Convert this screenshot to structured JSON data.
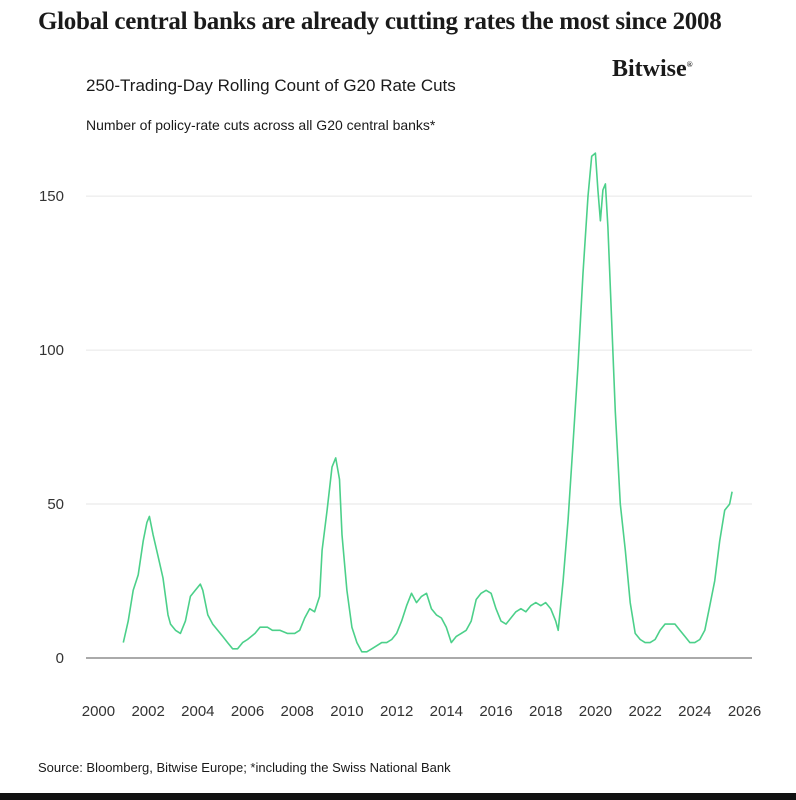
{
  "headline": "Global central banks are already cutting rates the most since 2008",
  "logo_text": "Bitwise",
  "logo_mark": "®",
  "source_note": "Source: Bloomberg, Bitwise Europe; *including the Swiss National Bank",
  "colors": {
    "line": "#4cd08a",
    "grid": "#e6e6e6",
    "axis": "#555555",
    "text": "#1a1a1a"
  },
  "chart_data": {
    "type": "line",
    "title": "250-Trading-Day Rolling Count of G20 Rate Cuts",
    "subtitle": "Number of policy-rate cuts across all G20 central banks*",
    "xlabel": "",
    "ylabel": "",
    "xlim": [
      1999.5,
      2026.3
    ],
    "ylim": [
      0,
      165
    ],
    "x_ticks": [
      "2000",
      "2002",
      "2004",
      "2006",
      "2008",
      "2010",
      "2012",
      "2014",
      "2016",
      "2018",
      "2020",
      "2022",
      "2024",
      "2026"
    ],
    "y_ticks": [
      "0",
      "50",
      "100",
      "150"
    ],
    "grid": "horizontal",
    "legend": "none",
    "series": [
      {
        "points": [
          [
            2001.0,
            5
          ],
          [
            2001.2,
            12
          ],
          [
            2001.4,
            22
          ],
          [
            2001.6,
            27
          ],
          [
            2001.8,
            38
          ],
          [
            2001.95,
            44
          ],
          [
            2002.05,
            46
          ],
          [
            2002.2,
            40
          ],
          [
            2002.4,
            33
          ],
          [
            2002.6,
            26
          ],
          [
            2002.8,
            14
          ],
          [
            2002.9,
            11
          ],
          [
            2003.1,
            9
          ],
          [
            2003.3,
            8
          ],
          [
            2003.5,
            12
          ],
          [
            2003.7,
            20
          ],
          [
            2003.9,
            22
          ],
          [
            2004.1,
            24
          ],
          [
            2004.2,
            22
          ],
          [
            2004.4,
            14
          ],
          [
            2004.6,
            11
          ],
          [
            2004.8,
            9
          ],
          [
            2005.0,
            7
          ],
          [
            2005.2,
            5
          ],
          [
            2005.4,
            3
          ],
          [
            2005.6,
            3
          ],
          [
            2005.8,
            5
          ],
          [
            2006.0,
            6
          ],
          [
            2006.3,
            8
          ],
          [
            2006.5,
            10
          ],
          [
            2006.8,
            10
          ],
          [
            2007.0,
            9
          ],
          [
            2007.3,
            9
          ],
          [
            2007.6,
            8
          ],
          [
            2007.9,
            8
          ],
          [
            2008.1,
            9
          ],
          [
            2008.3,
            13
          ],
          [
            2008.5,
            16
          ],
          [
            2008.7,
            15
          ],
          [
            2008.9,
            20
          ],
          [
            2009.0,
            35
          ],
          [
            2009.2,
            48
          ],
          [
            2009.4,
            62
          ],
          [
            2009.55,
            65
          ],
          [
            2009.7,
            58
          ],
          [
            2009.8,
            40
          ],
          [
            2010.0,
            22
          ],
          [
            2010.2,
            10
          ],
          [
            2010.4,
            5
          ],
          [
            2010.6,
            2
          ],
          [
            2010.8,
            2
          ],
          [
            2011.0,
            3
          ],
          [
            2011.2,
            4
          ],
          [
            2011.4,
            5
          ],
          [
            2011.6,
            5
          ],
          [
            2011.8,
            6
          ],
          [
            2012.0,
            8
          ],
          [
            2012.2,
            12
          ],
          [
            2012.4,
            17
          ],
          [
            2012.6,
            21
          ],
          [
            2012.8,
            18
          ],
          [
            2013.0,
            20
          ],
          [
            2013.2,
            21
          ],
          [
            2013.4,
            16
          ],
          [
            2013.6,
            14
          ],
          [
            2013.8,
            13
          ],
          [
            2014.0,
            10
          ],
          [
            2014.2,
            5
          ],
          [
            2014.4,
            7
          ],
          [
            2014.6,
            8
          ],
          [
            2014.8,
            9
          ],
          [
            2015.0,
            12
          ],
          [
            2015.2,
            19
          ],
          [
            2015.4,
            21
          ],
          [
            2015.6,
            22
          ],
          [
            2015.8,
            21
          ],
          [
            2016.0,
            16
          ],
          [
            2016.2,
            12
          ],
          [
            2016.4,
            11
          ],
          [
            2016.6,
            13
          ],
          [
            2016.8,
            15
          ],
          [
            2017.0,
            16
          ],
          [
            2017.2,
            15
          ],
          [
            2017.4,
            17
          ],
          [
            2017.6,
            18
          ],
          [
            2017.8,
            17
          ],
          [
            2018.0,
            18
          ],
          [
            2018.2,
            16
          ],
          [
            2018.4,
            12
          ],
          [
            2018.5,
            9
          ],
          [
            2018.7,
            25
          ],
          [
            2018.9,
            45
          ],
          [
            2019.1,
            70
          ],
          [
            2019.3,
            95
          ],
          [
            2019.5,
            125
          ],
          [
            2019.7,
            150
          ],
          [
            2019.85,
            163
          ],
          [
            2020.0,
            164
          ],
          [
            2020.1,
            152
          ],
          [
            2020.2,
            142
          ],
          [
            2020.3,
            152
          ],
          [
            2020.4,
            154
          ],
          [
            2020.5,
            140
          ],
          [
            2020.65,
            110
          ],
          [
            2020.8,
            80
          ],
          [
            2021.0,
            50
          ],
          [
            2021.2,
            35
          ],
          [
            2021.4,
            18
          ],
          [
            2021.6,
            8
          ],
          [
            2021.8,
            6
          ],
          [
            2022.0,
            5
          ],
          [
            2022.2,
            5
          ],
          [
            2022.4,
            6
          ],
          [
            2022.6,
            9
          ],
          [
            2022.8,
            11
          ],
          [
            2023.0,
            11
          ],
          [
            2023.2,
            11
          ],
          [
            2023.4,
            9
          ],
          [
            2023.6,
            7
          ],
          [
            2023.8,
            5
          ],
          [
            2024.0,
            5
          ],
          [
            2024.2,
            6
          ],
          [
            2024.4,
            9
          ],
          [
            2024.6,
            17
          ],
          [
            2024.8,
            25
          ],
          [
            2025.0,
            38
          ],
          [
            2025.2,
            48
          ],
          [
            2025.4,
            50
          ],
          [
            2025.5,
            54
          ]
        ]
      }
    ]
  }
}
